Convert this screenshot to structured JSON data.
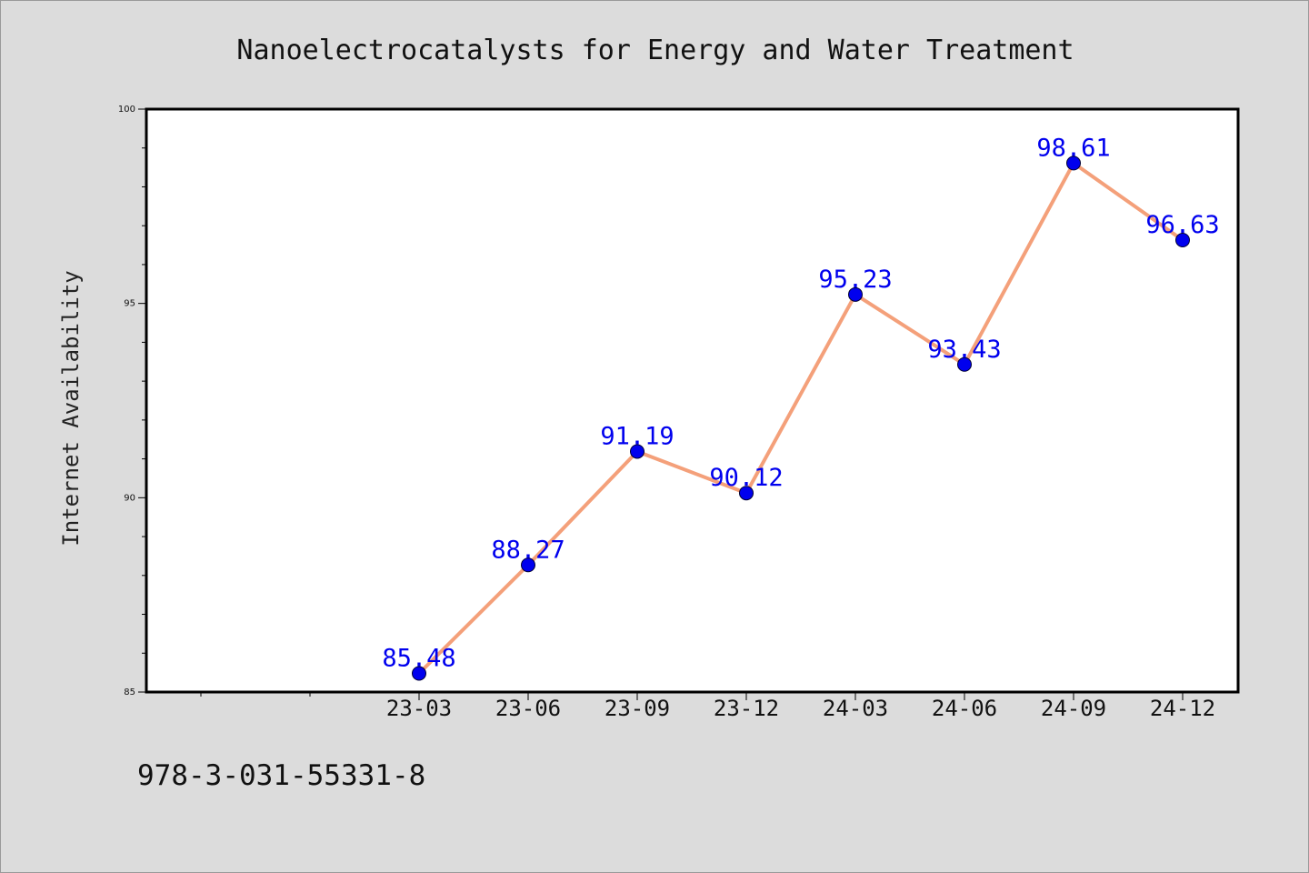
{
  "chart_data": {
    "type": "line",
    "title": "Nanoelectrocatalysts for Energy and Water Treatment",
    "xlabel": "",
    "ylabel": "Internet Availability",
    "categories": [
      "23-03",
      "23-06",
      "23-09",
      "23-12",
      "24-03",
      "24-06",
      "24-09",
      "24-12"
    ],
    "x_slots": [
      "",
      "",
      "23-03",
      "23-06",
      "23-09",
      "23-12",
      "24-03",
      "24-06",
      "24-09",
      "24-12"
    ],
    "series": [
      {
        "values": [
          85.48,
          88.27,
          91.19,
          90.12,
          95.23,
          93.43,
          98.61,
          96.63
        ],
        "labels": [
          "85.48",
          "88.27",
          "91.19",
          "90.12",
          "95.23",
          "93.43",
          "98.61",
          "96.63"
        ],
        "line_color": "#f4a07a",
        "marker_color": "#0000ee"
      }
    ],
    "ylim": [
      85,
      100
    ],
    "yticks": [
      85,
      90,
      95,
      100
    ],
    "ytick_labels": [
      "85",
      "90",
      "95",
      "100"
    ],
    "minor_yticks": [
      86,
      87,
      88,
      89,
      91,
      92,
      93,
      94,
      96,
      97,
      98,
      99
    ],
    "grid": false,
    "legend": "none",
    "label_color": "#0000ee"
  },
  "footer": {
    "isbn": "978-3-031-55331-8"
  }
}
